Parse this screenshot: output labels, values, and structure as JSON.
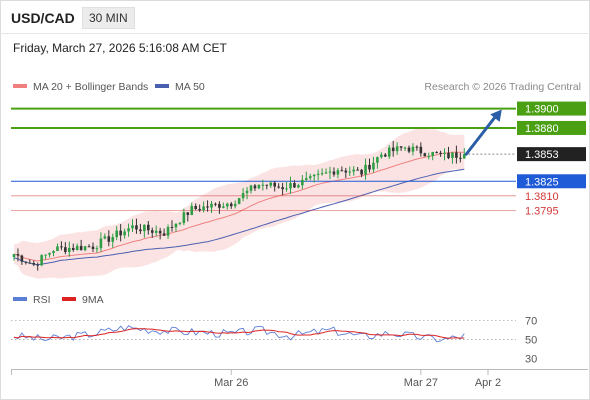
{
  "header": {
    "symbol": "USD/CAD",
    "timeframe": "30 MIN",
    "timestamp": "Friday, March 27, 2026 5:16:08 AM CET"
  },
  "legend": {
    "ma20": "MA 20 + Bollinger Bands",
    "ma50": "MA 50",
    "credit": "Research © 2026 Trading Central",
    "rsi": "RSI",
    "rsi_ma": "9MA"
  },
  "colors": {
    "up": "#2e9e44",
    "down": "#333333",
    "ma20": "#f08080",
    "band_fill": "#fbdcdc",
    "ma50": "#4a5fb0",
    "resistance": "#4aa012",
    "support_blue": "#1f5bd6",
    "support_red": "#d33a3a",
    "arrow": "#2a5fa8",
    "rsi": "#5b7fd6",
    "rsi_ma": "#dd2222"
  },
  "chart_data": {
    "type": "candlestick",
    "price_range": [
      1.3718,
      1.3914
    ],
    "levels": [
      {
        "value": 1.39,
        "label": "1.3900",
        "kind": "resistance"
      },
      {
        "value": 1.388,
        "label": "1.3880",
        "kind": "resistance"
      },
      {
        "value": 1.3853,
        "label": "1.3853",
        "kind": "current"
      },
      {
        "value": 1.3825,
        "label": "1.3825",
        "kind": "pivot"
      },
      {
        "value": 1.381,
        "label": "1.3810",
        "kind": "support"
      },
      {
        "value": 1.3795,
        "label": "1.3795",
        "kind": "support"
      }
    ],
    "x_ticks": [
      {
        "label": "Mar 26",
        "index": 55
      },
      {
        "label": "Mar 27",
        "index": 103
      },
      {
        "label": "Apr 2",
        "index": 120
      }
    ],
    "total_slots": 124,
    "last_index": 114,
    "forecast": {
      "from_index": 114,
      "from_price": 1.3853,
      "to_index": 124,
      "to_price": 1.3899
    },
    "anchors": [
      [
        0,
        1.375
      ],
      [
        5,
        1.3739
      ],
      [
        10,
        1.3755
      ],
      [
        20,
        1.3758
      ],
      [
        30,
        1.3778
      ],
      [
        38,
        1.3772
      ],
      [
        45,
        1.3796
      ],
      [
        55,
        1.3803
      ],
      [
        62,
        1.3822
      ],
      [
        68,
        1.3819
      ],
      [
        75,
        1.3826
      ],
      [
        82,
        1.3838
      ],
      [
        88,
        1.3834
      ],
      [
        93,
        1.3853
      ],
      [
        99,
        1.386
      ],
      [
        104,
        1.3855
      ],
      [
        109,
        1.3851
      ],
      [
        114,
        1.3853
      ]
    ],
    "rsi": {
      "range": [
        25,
        75
      ],
      "ticks": [
        70,
        50,
        30
      ],
      "anchors": [
        [
          0,
          54
        ],
        [
          8,
          50
        ],
        [
          20,
          56
        ],
        [
          28,
          63
        ],
        [
          36,
          60
        ],
        [
          45,
          58
        ],
        [
          55,
          56
        ],
        [
          62,
          60
        ],
        [
          70,
          54
        ],
        [
          80,
          60
        ],
        [
          88,
          53
        ],
        [
          95,
          57
        ],
        [
          104,
          52
        ],
        [
          109,
          50
        ],
        [
          114,
          54
        ]
      ]
    }
  }
}
